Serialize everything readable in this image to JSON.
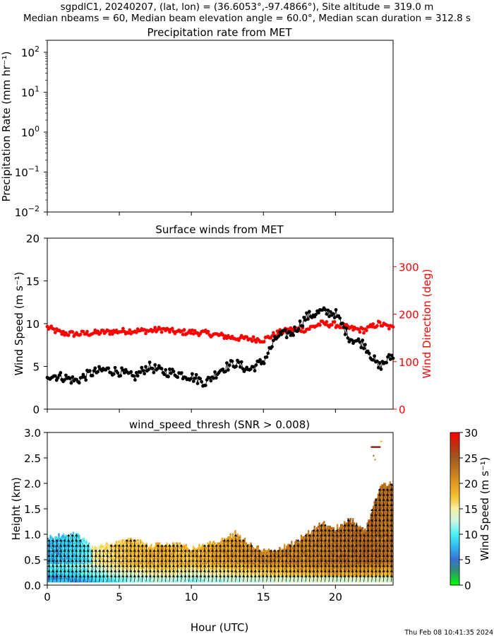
{
  "header": {
    "line1": "sgpdlC1, 20240207, (lat, lon) = (36.6053°,-97.4866°), Site altitude = 319.0 m",
    "line2": "Median nbeams = 60, Median beam elevation angle = 60.0°, Median scan duration = 312.8 s"
  },
  "footer": {
    "timestamp": "Thu Feb 08 10:41:35 2024"
  },
  "chart_data": [
    {
      "type": "line",
      "title": "Precipitation rate from MET",
      "ylabel": "Precipitation Rate (mm hr⁻¹)",
      "yscale": "log",
      "ylim": [
        0.01,
        200
      ],
      "xlim": [
        0,
        24
      ],
      "ytick_bases": [
        "10",
        "10",
        "10",
        "10",
        "10"
      ],
      "ytick_exps": [
        "2",
        "1",
        "0",
        "−1",
        "−2"
      ],
      "ytick_values": [
        100,
        10,
        1,
        0.1,
        0.01
      ],
      "x": [],
      "values": []
    },
    {
      "type": "line",
      "title": "Surface winds from MET",
      "xlim": [
        0,
        24
      ],
      "ylabel": "Wind Speed (m s⁻¹)",
      "ylim": [
        0,
        20
      ],
      "yticks": [
        "20",
        "15",
        "10",
        "5",
        "0"
      ],
      "ylabel_right": "Wind Direction (deg)",
      "ylim_right": [
        0,
        360
      ],
      "yticks_right": [
        "300",
        "200",
        "100",
        "0"
      ],
      "speed_color": "#000000",
      "direction_color": "#ff0000",
      "series": [
        {
          "name": "Wind Speed",
          "x": [
            0,
            1,
            2,
            3,
            4,
            5,
            6,
            7,
            8,
            9,
            10,
            11,
            12,
            13,
            14,
            15,
            16,
            17,
            18,
            19,
            20,
            21,
            22,
            23,
            24
          ],
          "values": [
            4.0,
            3.8,
            3.3,
            4.2,
            4.6,
            4.4,
            3.7,
            5.0,
            4.4,
            4.2,
            3.8,
            3.1,
            4.6,
            5.4,
            4.6,
            5.6,
            8.6,
            8.9,
            10.8,
            11.4,
            11.2,
            8.3,
            7.6,
            4.9,
            6.3
          ]
        },
        {
          "name": "Wind Direction",
          "x": [
            0,
            1,
            2,
            3,
            4,
            5,
            6,
            7,
            8,
            9,
            10,
            11,
            12,
            13,
            14,
            15,
            16,
            17,
            18,
            19,
            20,
            21,
            22,
            23,
            24
          ],
          "values": [
            172,
            160,
            158,
            160,
            162,
            164,
            165,
            165,
            168,
            162,
            162,
            160,
            155,
            150,
            148,
            146,
            160,
            168,
            168,
            180,
            178,
            170,
            166,
            180,
            170
          ]
        }
      ]
    },
    {
      "type": "heatmap",
      "title": "wind_speed_thresh (SNR > 0.008)",
      "xlabel": "Hour (UTC)",
      "ylabel": "Height (km)",
      "xlim": [
        0,
        24
      ],
      "xticks": [
        "0",
        "5",
        "10",
        "15",
        "20"
      ],
      "ylim": [
        0,
        3
      ],
      "yticks": [
        "3.0",
        "2.5",
        "2.0",
        "1.5",
        "1.0",
        "0.5",
        "0.0"
      ],
      "colorbar_label": "Wind Speed (m s⁻¹)",
      "colorbar_ticks": [
        "30",
        "25",
        "20",
        "15",
        "10",
        "5",
        "0"
      ],
      "colorbar_range": [
        0,
        30
      ],
      "colormap": [
        "#00ff00",
        "#2a9a64",
        "#3a6fd0",
        "#2fb8f0",
        "#49f2f2",
        "#c8f8e8",
        "#f8f0a0",
        "#f5c030",
        "#e09a20",
        "#c07820",
        "#a05a1e",
        "#c03010",
        "#ff0000"
      ],
      "echo_top_km": {
        "x": [
          0,
          1,
          2,
          3,
          4,
          5,
          6,
          7,
          8,
          9,
          10,
          11,
          12,
          13,
          14,
          15,
          16,
          17,
          18,
          19,
          20,
          21,
          22,
          23,
          24
        ],
        "values": [
          0.9,
          0.95,
          1.0,
          0.75,
          0.75,
          0.85,
          0.9,
          0.75,
          0.8,
          0.8,
          0.7,
          0.8,
          0.85,
          1.0,
          0.8,
          0.65,
          0.7,
          0.8,
          1.0,
          1.2,
          1.1,
          1.3,
          1.05,
          1.9,
          2.0
        ]
      },
      "speed_profile": {
        "x": [
          0,
          2,
          4,
          6,
          8,
          10,
          12,
          14,
          16,
          18,
          20,
          22,
          24
        ],
        "low_level_speed": [
          11,
          12,
          15,
          17,
          18,
          17,
          18,
          19,
          20,
          21,
          22,
          22,
          21
        ],
        "upper_level_speed": [
          11,
          13,
          16,
          18,
          19,
          18,
          20,
          21,
          22,
          22,
          23,
          24,
          23
        ]
      }
    }
  ]
}
